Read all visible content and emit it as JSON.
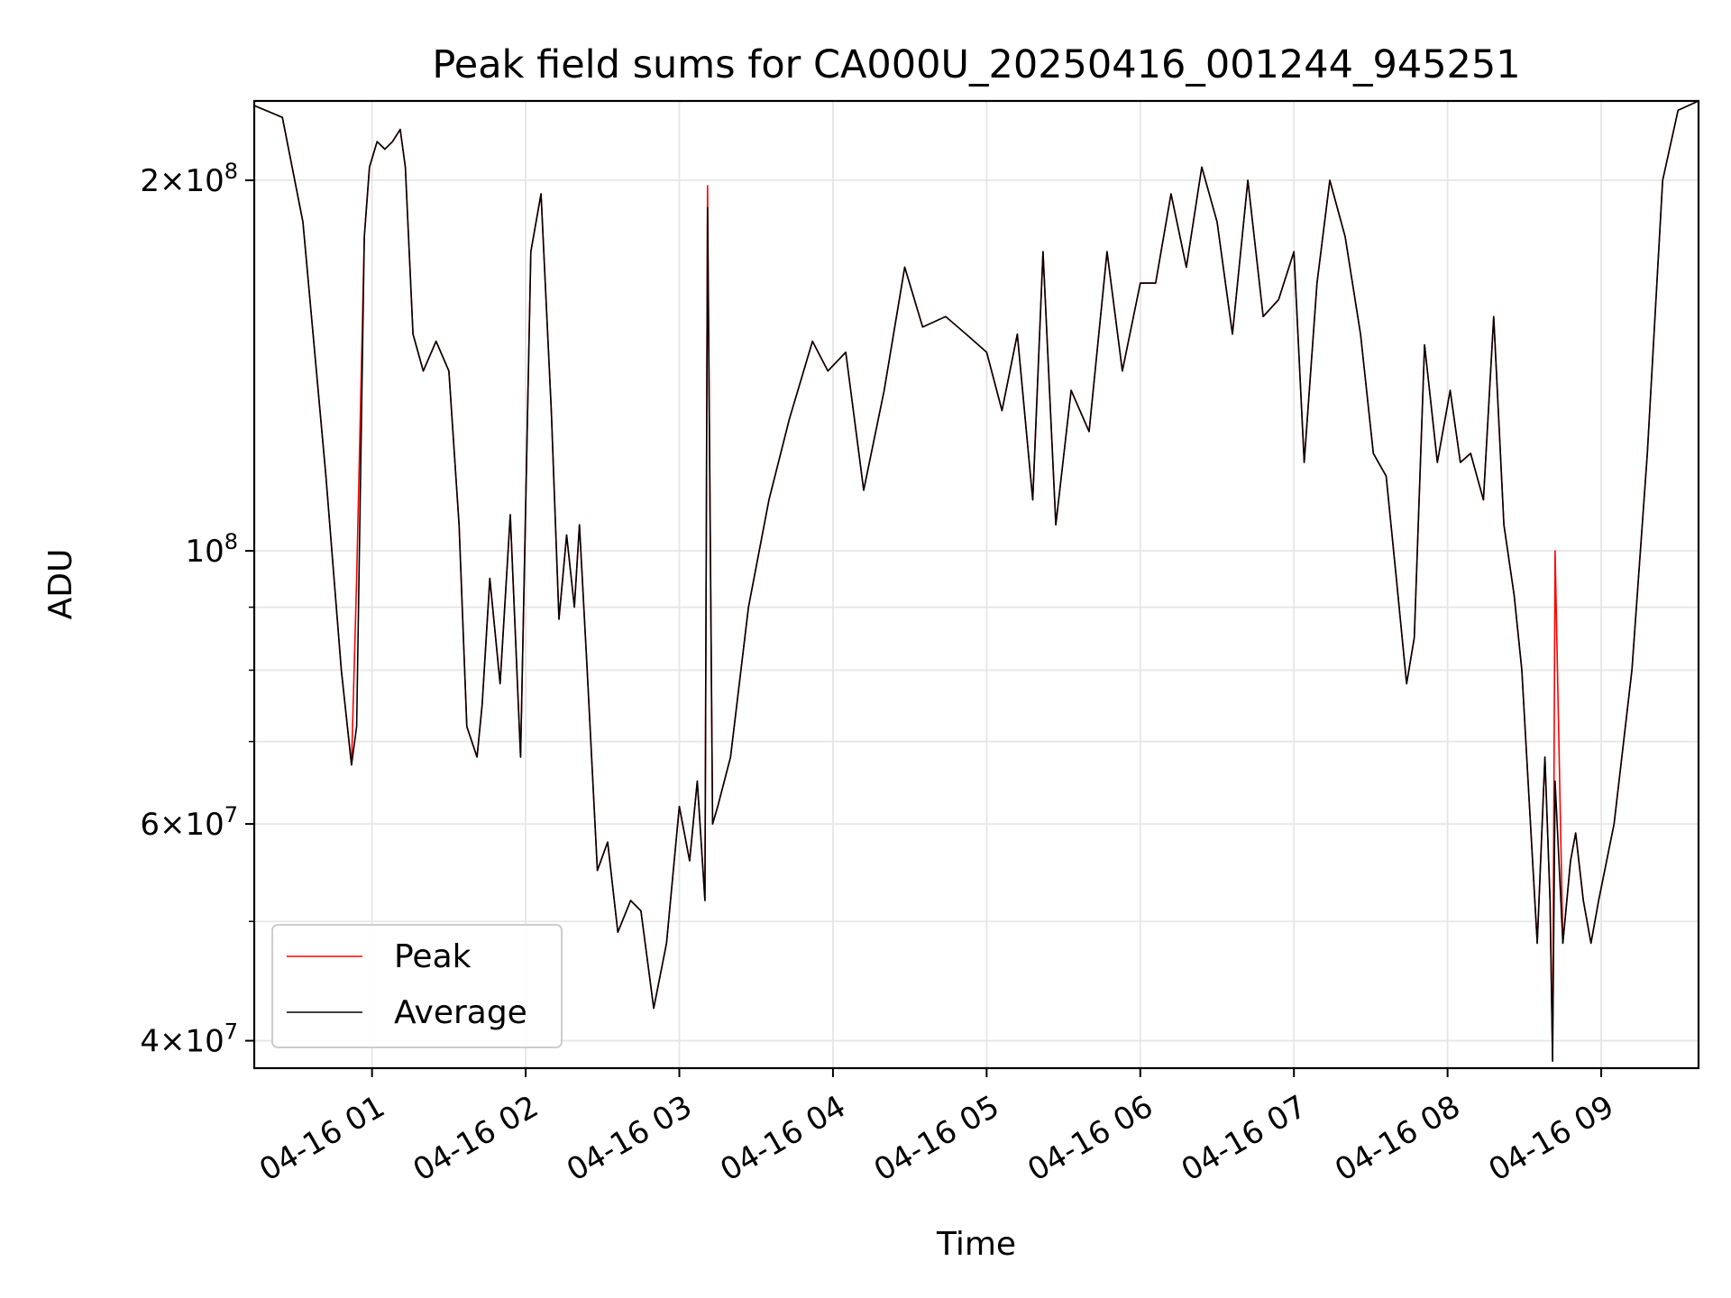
{
  "chart_data": {
    "type": "line",
    "title": "Peak field sums for CA000U_20250416_001244_945251",
    "xlabel": "Time",
    "ylabel": "ADU",
    "y_scale": "log",
    "grid": true,
    "legend_position": "lower-left",
    "xlim": [
      "2025-04-16 00:14",
      "2025-04-16 09:38"
    ],
    "ylim": [
      38000000,
      232000000
    ],
    "x_ticks": [
      {
        "value": "2025-04-16 01:00",
        "label": "04-16 01"
      },
      {
        "value": "2025-04-16 02:00",
        "label": "04-16 02"
      },
      {
        "value": "2025-04-16 03:00",
        "label": "04-16 03"
      },
      {
        "value": "2025-04-16 04:00",
        "label": "04-16 04"
      },
      {
        "value": "2025-04-16 05:00",
        "label": "04-16 05"
      },
      {
        "value": "2025-04-16 06:00",
        "label": "04-16 06"
      },
      {
        "value": "2025-04-16 07:00",
        "label": "04-16 07"
      },
      {
        "value": "2025-04-16 08:00",
        "label": "04-16 08"
      },
      {
        "value": "2025-04-16 09:00",
        "label": "04-16 09"
      }
    ],
    "y_major_ticks": [
      {
        "value": 40000000,
        "base": "4",
        "exp": "7"
      },
      {
        "value": 60000000,
        "base": "6",
        "exp": "7"
      },
      {
        "value": 100000000,
        "base": "",
        "exp": "8"
      },
      {
        "value": 200000000,
        "base": "2",
        "exp": "8"
      }
    ],
    "y_minor_ticks": [
      50000000,
      70000000,
      80000000,
      90000000
    ],
    "series": [
      {
        "name": "Peak",
        "color": "#ff0000",
        "x": [
          "2025-04-16 00:14",
          "2025-04-16 00:25",
          "2025-04-16 00:33",
          "2025-04-16 00:42",
          "2025-04-16 00:48",
          "2025-04-16 00:52",
          "2025-04-16 00:54",
          "2025-04-16 00:57",
          "2025-04-16 00:59",
          "2025-04-16 01:02",
          "2025-04-16 01:05",
          "2025-04-16 01:08",
          "2025-04-16 01:11",
          "2025-04-16 01:13",
          "2025-04-16 01:16",
          "2025-04-16 01:20",
          "2025-04-16 01:25",
          "2025-04-16 01:30",
          "2025-04-16 01:34",
          "2025-04-16 01:37",
          "2025-04-16 01:41",
          "2025-04-16 01:43",
          "2025-04-16 01:46",
          "2025-04-16 01:50",
          "2025-04-16 01:54",
          "2025-04-16 01:58",
          "2025-04-16 02:02",
          "2025-04-16 02:06",
          "2025-04-16 02:10",
          "2025-04-16 02:13",
          "2025-04-16 02:16",
          "2025-04-16 02:19",
          "2025-04-16 02:21",
          "2025-04-16 02:24",
          "2025-04-16 02:28",
          "2025-04-16 02:32",
          "2025-04-16 02:36",
          "2025-04-16 02:41",
          "2025-04-16 02:45",
          "2025-04-16 02:50",
          "2025-04-16 02:55",
          "2025-04-16 03:00",
          "2025-04-16 03:04",
          "2025-04-16 03:07",
          "2025-04-16 03:10",
          "2025-04-16 03:11",
          "2025-04-16 03:13",
          "2025-04-16 03:15",
          "2025-04-16 03:20",
          "2025-04-16 03:27",
          "2025-04-16 03:35",
          "2025-04-16 03:43",
          "2025-04-16 03:52",
          "2025-04-16 03:58",
          "2025-04-16 04:05",
          "2025-04-16 04:12",
          "2025-04-16 04:20",
          "2025-04-16 04:28",
          "2025-04-16 04:35",
          "2025-04-16 04:44",
          "2025-04-16 04:52",
          "2025-04-16 05:00",
          "2025-04-16 05:06",
          "2025-04-16 05:12",
          "2025-04-16 05:18",
          "2025-04-16 05:22",
          "2025-04-16 05:27",
          "2025-04-16 05:33",
          "2025-04-16 05:40",
          "2025-04-16 05:47",
          "2025-04-16 05:53",
          "2025-04-16 06:00",
          "2025-04-16 06:06",
          "2025-04-16 06:12",
          "2025-04-16 06:18",
          "2025-04-16 06:24",
          "2025-04-16 06:30",
          "2025-04-16 06:36",
          "2025-04-16 06:42",
          "2025-04-16 06:48",
          "2025-04-16 06:54",
          "2025-04-16 07:00",
          "2025-04-16 07:04",
          "2025-04-16 07:09",
          "2025-04-16 07:14",
          "2025-04-16 07:20",
          "2025-04-16 07:26",
          "2025-04-16 07:31",
          "2025-04-16 07:36",
          "2025-04-16 07:40",
          "2025-04-16 07:44",
          "2025-04-16 07:47",
          "2025-04-16 07:51",
          "2025-04-16 07:56",
          "2025-04-16 08:01",
          "2025-04-16 08:05",
          "2025-04-16 08:09",
          "2025-04-16 08:14",
          "2025-04-16 08:18",
          "2025-04-16 08:22",
          "2025-04-16 08:26",
          "2025-04-16 08:29",
          "2025-04-16 08:32",
          "2025-04-16 08:35",
          "2025-04-16 08:38",
          "2025-04-16 08:40",
          "2025-04-16 08:41",
          "2025-04-16 08:42",
          "2025-04-16 08:45",
          "2025-04-16 08:48",
          "2025-04-16 08:50",
          "2025-04-16 08:53",
          "2025-04-16 08:56",
          "2025-04-16 08:59",
          "2025-04-16 09:05",
          "2025-04-16 09:12",
          "2025-04-16 09:18",
          "2025-04-16 09:24",
          "2025-04-16 09:30",
          "2025-04-16 09:38"
        ],
        "y": [
          230000000,
          225000000,
          185000000,
          115000000,
          80000000,
          67000000,
          95000000,
          180000000,
          205000000,
          215000000,
          212000000,
          215000000,
          220000000,
          205000000,
          150000000,
          140000000,
          148000000,
          140000000,
          105000000,
          72000000,
          68000000,
          75000000,
          95000000,
          78000000,
          107000000,
          68000000,
          175000000,
          195000000,
          130000000,
          88000000,
          103000000,
          90000000,
          105000000,
          80000000,
          55000000,
          58000000,
          49000000,
          52000000,
          51000000,
          42500000,
          48000000,
          62000000,
          56000000,
          65000000,
          52000000,
          198000000,
          60000000,
          62000000,
          68000000,
          90000000,
          110000000,
          128000000,
          148000000,
          140000000,
          145000000,
          112000000,
          135000000,
          170000000,
          152000000,
          155000000,
          150000000,
          145000000,
          130000000,
          150000000,
          110000000,
          175000000,
          105000000,
          135000000,
          125000000,
          175000000,
          140000000,
          165000000,
          165000000,
          195000000,
          170000000,
          205000000,
          185000000,
          150000000,
          200000000,
          155000000,
          160000000,
          175000000,
          118000000,
          165000000,
          200000000,
          180000000,
          150000000,
          120000000,
          115000000,
          95000000,
          78000000,
          85000000,
          147000000,
          118000000,
          135000000,
          118000000,
          120000000,
          110000000,
          155000000,
          105000000,
          92000000,
          80000000,
          62000000,
          48000000,
          68000000,
          52000000,
          38500000,
          100000000,
          48000000,
          56000000,
          59000000,
          52000000,
          48000000,
          52000000,
          60000000,
          80000000,
          120000000,
          200000000,
          228000000,
          232000000
        ]
      },
      {
        "name": "Average",
        "color": "#000000",
        "x": [
          "2025-04-16 00:14",
          "2025-04-16 00:25",
          "2025-04-16 00:33",
          "2025-04-16 00:42",
          "2025-04-16 00:48",
          "2025-04-16 00:52",
          "2025-04-16 00:54",
          "2025-04-16 00:57",
          "2025-04-16 00:59",
          "2025-04-16 01:02",
          "2025-04-16 01:05",
          "2025-04-16 01:08",
          "2025-04-16 01:11",
          "2025-04-16 01:13",
          "2025-04-16 01:16",
          "2025-04-16 01:20",
          "2025-04-16 01:25",
          "2025-04-16 01:30",
          "2025-04-16 01:34",
          "2025-04-16 01:37",
          "2025-04-16 01:41",
          "2025-04-16 01:43",
          "2025-04-16 01:46",
          "2025-04-16 01:50",
          "2025-04-16 01:54",
          "2025-04-16 01:58",
          "2025-04-16 02:02",
          "2025-04-16 02:06",
          "2025-04-16 02:10",
          "2025-04-16 02:13",
          "2025-04-16 02:16",
          "2025-04-16 02:19",
          "2025-04-16 02:21",
          "2025-04-16 02:24",
          "2025-04-16 02:28",
          "2025-04-16 02:32",
          "2025-04-16 02:36",
          "2025-04-16 02:41",
          "2025-04-16 02:45",
          "2025-04-16 02:50",
          "2025-04-16 02:55",
          "2025-04-16 03:00",
          "2025-04-16 03:04",
          "2025-04-16 03:07",
          "2025-04-16 03:10",
          "2025-04-16 03:11",
          "2025-04-16 03:13",
          "2025-04-16 03:15",
          "2025-04-16 03:20",
          "2025-04-16 03:27",
          "2025-04-16 03:35",
          "2025-04-16 03:43",
          "2025-04-16 03:52",
          "2025-04-16 03:58",
          "2025-04-16 04:05",
          "2025-04-16 04:12",
          "2025-04-16 04:20",
          "2025-04-16 04:28",
          "2025-04-16 04:35",
          "2025-04-16 04:44",
          "2025-04-16 04:52",
          "2025-04-16 05:00",
          "2025-04-16 05:06",
          "2025-04-16 05:12",
          "2025-04-16 05:18",
          "2025-04-16 05:22",
          "2025-04-16 05:27",
          "2025-04-16 05:33",
          "2025-04-16 05:40",
          "2025-04-16 05:47",
          "2025-04-16 05:53",
          "2025-04-16 06:00",
          "2025-04-16 06:06",
          "2025-04-16 06:12",
          "2025-04-16 06:18",
          "2025-04-16 06:24",
          "2025-04-16 06:30",
          "2025-04-16 06:36",
          "2025-04-16 06:42",
          "2025-04-16 06:48",
          "2025-04-16 06:54",
          "2025-04-16 07:00",
          "2025-04-16 07:04",
          "2025-04-16 07:09",
          "2025-04-16 07:14",
          "2025-04-16 07:20",
          "2025-04-16 07:26",
          "2025-04-16 07:31",
          "2025-04-16 07:36",
          "2025-04-16 07:40",
          "2025-04-16 07:44",
          "2025-04-16 07:47",
          "2025-04-16 07:51",
          "2025-04-16 07:56",
          "2025-04-16 08:01",
          "2025-04-16 08:05",
          "2025-04-16 08:09",
          "2025-04-16 08:14",
          "2025-04-16 08:18",
          "2025-04-16 08:22",
          "2025-04-16 08:26",
          "2025-04-16 08:29",
          "2025-04-16 08:32",
          "2025-04-16 08:35",
          "2025-04-16 08:38",
          "2025-04-16 08:40",
          "2025-04-16 08:41",
          "2025-04-16 08:42",
          "2025-04-16 08:45",
          "2025-04-16 08:48",
          "2025-04-16 08:50",
          "2025-04-16 08:53",
          "2025-04-16 08:56",
          "2025-04-16 08:59",
          "2025-04-16 09:05",
          "2025-04-16 09:12",
          "2025-04-16 09:18",
          "2025-04-16 09:24",
          "2025-04-16 09:30",
          "2025-04-16 09:38"
        ],
        "y": [
          230000000,
          225000000,
          185000000,
          115000000,
          80000000,
          67000000,
          72000000,
          180000000,
          205000000,
          215000000,
          212000000,
          215000000,
          220000000,
          205000000,
          150000000,
          140000000,
          148000000,
          140000000,
          105000000,
          72000000,
          68000000,
          75000000,
          95000000,
          78000000,
          107000000,
          68000000,
          175000000,
          195000000,
          130000000,
          88000000,
          103000000,
          90000000,
          105000000,
          80000000,
          55000000,
          58000000,
          49000000,
          52000000,
          51000000,
          42500000,
          48000000,
          62000000,
          56000000,
          65000000,
          52000000,
          190000000,
          60000000,
          62000000,
          68000000,
          90000000,
          110000000,
          128000000,
          148000000,
          140000000,
          145000000,
          112000000,
          135000000,
          170000000,
          152000000,
          155000000,
          150000000,
          145000000,
          130000000,
          150000000,
          110000000,
          175000000,
          105000000,
          135000000,
          125000000,
          175000000,
          140000000,
          165000000,
          165000000,
          195000000,
          170000000,
          205000000,
          185000000,
          150000000,
          200000000,
          155000000,
          160000000,
          175000000,
          118000000,
          165000000,
          200000000,
          180000000,
          150000000,
          120000000,
          115000000,
          95000000,
          78000000,
          85000000,
          147000000,
          118000000,
          135000000,
          118000000,
          120000000,
          110000000,
          155000000,
          105000000,
          92000000,
          80000000,
          62000000,
          48000000,
          68000000,
          52000000,
          38500000,
          65000000,
          48000000,
          56000000,
          59000000,
          52000000,
          48000000,
          52000000,
          60000000,
          80000000,
          120000000,
          200000000,
          228000000,
          232000000
        ]
      }
    ]
  }
}
